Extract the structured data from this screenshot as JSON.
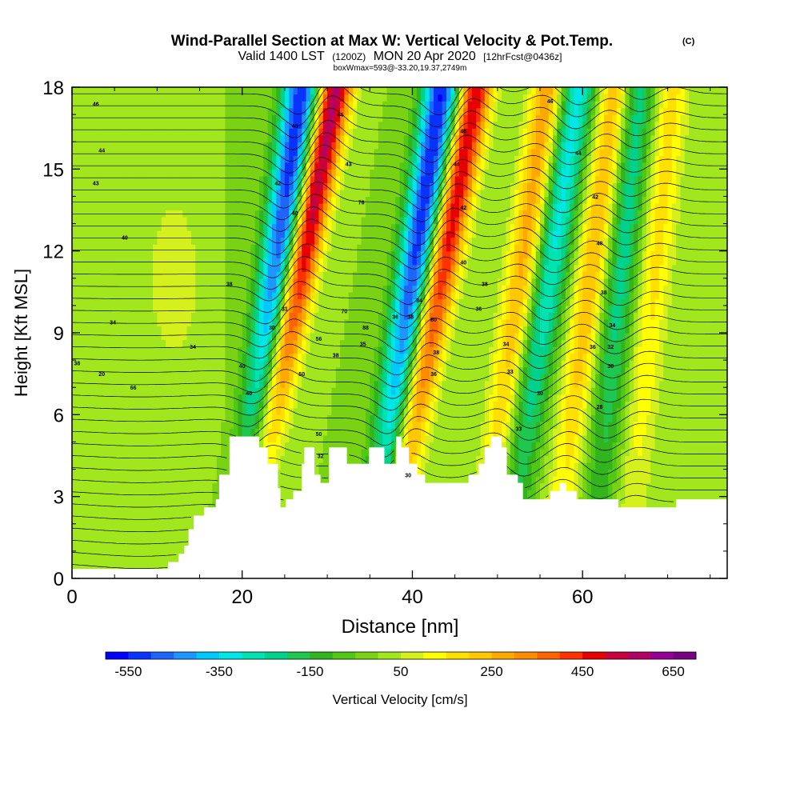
{
  "chart_data": {
    "type": "heatmap",
    "title": "Wind-Parallel Section at Max W: Vertical Velocity & Pot.Temp.",
    "copyright": "(C)",
    "subtitle_main": "Valid 1400 LST",
    "subtitle_utc": "(1200Z)",
    "subtitle_date": "MON 20 Apr 2020",
    "subtitle_fcst": "[12hrFcst@0436z]",
    "info_line": "boxWmax=593@-33.20,19.37,2749m",
    "xlabel": "Distance [nm]",
    "ylabel": "Height [Kft MSL]",
    "xlim": [
      0,
      77
    ],
    "ylim": [
      0,
      18
    ],
    "x_ticks": [
      0,
      20,
      40,
      60
    ],
    "y_ticks": [
      0,
      3,
      6,
      9,
      12,
      15,
      18
    ],
    "x_tick_labels": [
      "0",
      "20",
      "40",
      "60"
    ],
    "y_tick_labels": [
      "0",
      "3",
      "6",
      "9",
      "12",
      "15",
      "18"
    ],
    "colorbar": {
      "label": "Vertical Velocity [cm/s]",
      "range": [
        -600,
        700
      ],
      "tick_values": [
        -550,
        -350,
        -150,
        50,
        250,
        450,
        650
      ],
      "tick_labels": [
        "-550",
        "-350",
        "-150",
        "50",
        "250",
        "450",
        "650"
      ],
      "colors": [
        "#0000ff",
        "#0a32ff",
        "#1e64ff",
        "#1e96ff",
        "#00c8ff",
        "#00e6e6",
        "#00e2b0",
        "#00d28c",
        "#1ec850",
        "#32b41e",
        "#50c814",
        "#7ad214",
        "#a2e61e",
        "#d6f01e",
        "#ffff00",
        "#ffe000",
        "#ffc800",
        "#ffa800",
        "#ff8c00",
        "#ff6400",
        "#ff3200",
        "#e60000",
        "#c8003c",
        "#b40064",
        "#960096",
        "#780082"
      ]
    },
    "updraft_bands": [
      {
        "x_at_0": 19.5,
        "x_at_18": 31.0,
        "value": 593
      },
      {
        "x_at_0": 36.5,
        "x_at_18": 47.5,
        "value": 520
      },
      {
        "x_at_0": 48.0,
        "x_at_18": 56.0,
        "value": 300
      },
      {
        "x_at_0": 56.5,
        "x_at_18": 64.0,
        "value": 280
      },
      {
        "x_at_0": 65.0,
        "x_at_18": 70.5,
        "value": 180
      }
    ],
    "downdraft_bands": [
      {
        "x_at_0": 19.5,
        "x_at_18": 27.0,
        "value": -550
      },
      {
        "x_at_0": 35.0,
        "x_at_18": 43.5,
        "value": -560
      },
      {
        "x_at_0": 50.5,
        "x_at_18": 59.5,
        "value": -330
      },
      {
        "x_at_0": 61.0,
        "x_at_18": 66.5,
        "value": -250
      }
    ],
    "theta_labels": [
      {
        "x": 2.8,
        "y": 17.4,
        "text": "46"
      },
      {
        "x": 3.5,
        "y": 15.7,
        "text": "44"
      },
      {
        "x": 2.8,
        "y": 14.5,
        "text": "43"
      },
      {
        "x": 6.2,
        "y": 12.5,
        "text": "40"
      },
      {
        "x": 18.5,
        "y": 10.8,
        "text": "38"
      },
      {
        "x": 4.8,
        "y": 9.4,
        "text": "34"
      },
      {
        "x": 14.2,
        "y": 8.5,
        "text": "34"
      },
      {
        "x": 0.6,
        "y": 7.9,
        "text": "38"
      },
      {
        "x": 3.5,
        "y": 7.5,
        "text": "20"
      },
      {
        "x": 7.2,
        "y": 7.0,
        "text": "66"
      },
      {
        "x": 20.0,
        "y": 7.8,
        "text": "40"
      },
      {
        "x": 20.8,
        "y": 6.8,
        "text": "40"
      },
      {
        "x": 23.5,
        "y": 9.2,
        "text": "30"
      },
      {
        "x": 25.0,
        "y": 9.9,
        "text": "31"
      },
      {
        "x": 24.2,
        "y": 14.5,
        "text": "42"
      },
      {
        "x": 26.2,
        "y": 13.4,
        "text": "40"
      },
      {
        "x": 26.2,
        "y": 16.6,
        "text": "43"
      },
      {
        "x": 27.0,
        "y": 7.5,
        "text": "50"
      },
      {
        "x": 29.0,
        "y": 8.8,
        "text": "56"
      },
      {
        "x": 29.0,
        "y": 5.3,
        "text": "50"
      },
      {
        "x": 29.2,
        "y": 4.5,
        "text": "32"
      },
      {
        "x": 31.5,
        "y": 17.0,
        "text": "44"
      },
      {
        "x": 32.5,
        "y": 15.2,
        "text": "43"
      },
      {
        "x": 34.0,
        "y": 13.8,
        "text": "76"
      },
      {
        "x": 32.0,
        "y": 9.8,
        "text": "70"
      },
      {
        "x": 31.0,
        "y": 8.2,
        "text": "38"
      },
      {
        "x": 34.5,
        "y": 9.2,
        "text": "88"
      },
      {
        "x": 34.2,
        "y": 8.6,
        "text": "35"
      },
      {
        "x": 38.0,
        "y": 9.6,
        "text": "36"
      },
      {
        "x": 39.8,
        "y": 9.6,
        "text": "38"
      },
      {
        "x": 40.8,
        "y": 10.2,
        "text": "34"
      },
      {
        "x": 42.5,
        "y": 9.5,
        "text": "80"
      },
      {
        "x": 42.8,
        "y": 8.3,
        "text": "38"
      },
      {
        "x": 42.5,
        "y": 7.5,
        "text": "36"
      },
      {
        "x": 39.5,
        "y": 3.8,
        "text": "30"
      },
      {
        "x": 45.2,
        "y": 15.2,
        "text": "44"
      },
      {
        "x": 46.0,
        "y": 16.4,
        "text": "46"
      },
      {
        "x": 46.0,
        "y": 13.6,
        "text": "42"
      },
      {
        "x": 46.0,
        "y": 11.6,
        "text": "40"
      },
      {
        "x": 48.5,
        "y": 10.8,
        "text": "38"
      },
      {
        "x": 47.8,
        "y": 9.9,
        "text": "36"
      },
      {
        "x": 51.0,
        "y": 8.6,
        "text": "34"
      },
      {
        "x": 51.5,
        "y": 7.6,
        "text": "33"
      },
      {
        "x": 52.5,
        "y": 5.5,
        "text": "33"
      },
      {
        "x": 55.0,
        "y": 6.8,
        "text": "30"
      },
      {
        "x": 56.2,
        "y": 17.5,
        "text": "46"
      },
      {
        "x": 59.5,
        "y": 15.6,
        "text": "44"
      },
      {
        "x": 61.5,
        "y": 14.0,
        "text": "42"
      },
      {
        "x": 62.0,
        "y": 12.3,
        "text": "40"
      },
      {
        "x": 62.5,
        "y": 10.5,
        "text": "38"
      },
      {
        "x": 63.5,
        "y": 9.3,
        "text": "34"
      },
      {
        "x": 63.3,
        "y": 8.5,
        "text": "32"
      },
      {
        "x": 61.2,
        "y": 8.5,
        "text": "36"
      },
      {
        "x": 63.3,
        "y": 7.8,
        "text": "30"
      },
      {
        "x": 62.0,
        "y": 6.3,
        "text": "28"
      }
    ],
    "terrain_top": [
      [
        0,
        0.35
      ],
      [
        11.3,
        0.35
      ],
      [
        11.3,
        0.6
      ],
      [
        12.5,
        0.6
      ],
      [
        12.5,
        0.9
      ],
      [
        13.2,
        0.9
      ],
      [
        13.2,
        1.2
      ],
      [
        13.7,
        1.2
      ],
      [
        13.7,
        1.8
      ],
      [
        14.3,
        1.8
      ],
      [
        14.3,
        2.3
      ],
      [
        15.5,
        2.3
      ],
      [
        15.5,
        2.6
      ],
      [
        16.9,
        2.6
      ],
      [
        16.9,
        2.9
      ],
      [
        17.3,
        2.9
      ],
      [
        17.3,
        3.8
      ],
      [
        18.5,
        3.8
      ],
      [
        18.5,
        5.2
      ],
      [
        22.0,
        5.2
      ],
      [
        22.0,
        4.8
      ],
      [
        23.0,
        4.8
      ],
      [
        23.0,
        4.2
      ],
      [
        24.2,
        4.2
      ],
      [
        24.2,
        3.3
      ],
      [
        24.5,
        3.3
      ],
      [
        24.5,
        2.6
      ],
      [
        25.1,
        2.6
      ],
      [
        25.1,
        2.9
      ],
      [
        26.0,
        2.9
      ],
      [
        26.0,
        3.2
      ],
      [
        27.0,
        3.2
      ],
      [
        27.0,
        4.2
      ],
      [
        27.3,
        4.2
      ],
      [
        27.3,
        4.8
      ],
      [
        28.5,
        4.8
      ],
      [
        28.5,
        3.8
      ],
      [
        29.2,
        3.8
      ],
      [
        29.2,
        3.5
      ],
      [
        30.2,
        3.5
      ],
      [
        30.2,
        4.8
      ],
      [
        32.3,
        4.8
      ],
      [
        32.3,
        4.2
      ],
      [
        34.9,
        4.2
      ],
      [
        34.9,
        4.8
      ],
      [
        36.7,
        4.8
      ],
      [
        36.7,
        4.2
      ],
      [
        38.1,
        4.2
      ],
      [
        38.1,
        5.2
      ],
      [
        38.7,
        5.2
      ],
      [
        38.7,
        4.8
      ],
      [
        39.6,
        4.8
      ],
      [
        39.6,
        4.2
      ],
      [
        40.6,
        4.2
      ],
      [
        40.6,
        3.8
      ],
      [
        41.5,
        3.8
      ],
      [
        41.5,
        3.5
      ],
      [
        46.6,
        3.5
      ],
      [
        46.6,
        3.8
      ],
      [
        47.8,
        3.8
      ],
      [
        47.8,
        4.2
      ],
      [
        48.5,
        4.2
      ],
      [
        48.5,
        4.8
      ],
      [
        49.2,
        4.8
      ],
      [
        49.2,
        5.2
      ],
      [
        50.5,
        5.2
      ],
      [
        50.5,
        4.8
      ],
      [
        51.1,
        4.8
      ],
      [
        51.1,
        3.8
      ],
      [
        52.4,
        3.8
      ],
      [
        52.4,
        3.5
      ],
      [
        53.0,
        3.5
      ],
      [
        53.0,
        2.9
      ],
      [
        56.2,
        2.9
      ],
      [
        56.2,
        3.2
      ],
      [
        57.3,
        3.2
      ],
      [
        57.3,
        3.5
      ],
      [
        58.1,
        3.5
      ],
      [
        58.1,
        3.2
      ],
      [
        59.3,
        3.2
      ],
      [
        59.3,
        2.9
      ],
      [
        64.2,
        2.9
      ],
      [
        64.2,
        2.6
      ],
      [
        71.0,
        2.6
      ],
      [
        71.0,
        2.9
      ],
      [
        77.0,
        2.9
      ]
    ]
  }
}
